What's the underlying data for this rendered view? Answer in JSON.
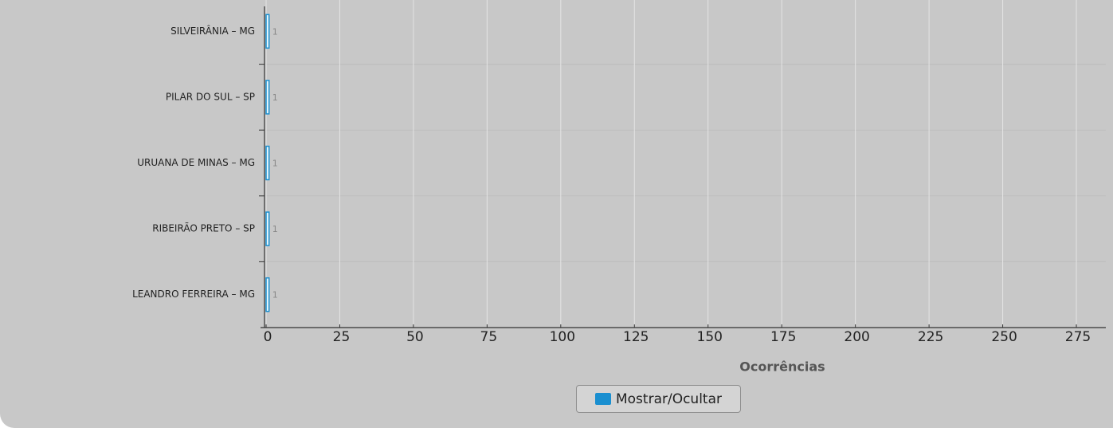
{
  "chart_data": {
    "type": "bar",
    "orientation": "horizontal",
    "categories": [
      "SILVEIRÂNIA – MG",
      "PILAR DO SUL – SP",
      "URUANA DE MINAS – MG",
      "RIBEIRÃO PRETO – SP",
      "LEANDRO FERREIRA – MG"
    ],
    "series": [
      {
        "name": "Mostrar/Ocultar",
        "color": "#1a8fd0",
        "values": [
          1,
          1,
          1,
          1,
          1
        ]
      }
    ],
    "xlabel": "Ocorrências",
    "xlim": [
      0,
      285
    ],
    "xticks": [
      0,
      25,
      50,
      75,
      100,
      125,
      150,
      175,
      200,
      225,
      250,
      275
    ],
    "grid": true,
    "legend": "bottom"
  }
}
